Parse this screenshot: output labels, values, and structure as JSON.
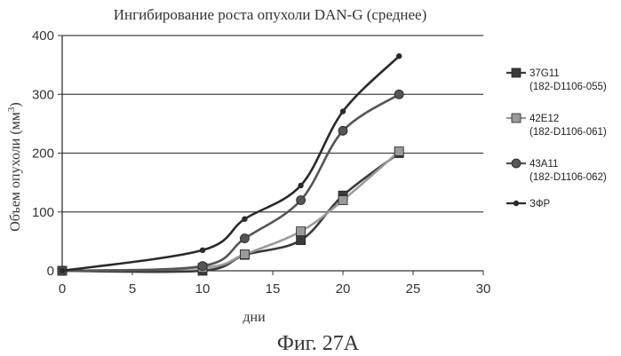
{
  "chart_data": {
    "type": "line",
    "title": "Ингибирование роста опухоли DAN-G (среднее)",
    "xlabel": "дни",
    "ylabel": "Объем опухоли (мм",
    "ylabel_sup": "3",
    "ylabel_close": ")",
    "xlim": [
      0,
      30
    ],
    "ylim": [
      0,
      400
    ],
    "xticks": [
      "0",
      "5",
      "10",
      "15",
      "20",
      "25",
      "30"
    ],
    "yticks": [
      "0",
      "100",
      "200",
      "300",
      "400"
    ],
    "grid": "horizontal",
    "legend_position": "right",
    "series": [
      {
        "name": "37G11",
        "name_line2": "(182-D1106-055)",
        "color": "#3a3a3a",
        "marker": "square",
        "x": [
          0,
          10,
          13,
          17,
          20,
          24
        ],
        "y": [
          0,
          0,
          27,
          52,
          128,
          200
        ]
      },
      {
        "name": "42E12",
        "name_line2": "(182-D1106-061)",
        "color": "#9a9a9a",
        "marker": "square",
        "x": [
          0,
          10,
          13,
          17,
          20,
          24
        ],
        "y": [
          0,
          5,
          28,
          67,
          120,
          203
        ]
      },
      {
        "name": "43A11",
        "name_line2": "(182-D1106-062)",
        "color": "#555555",
        "marker": "circle",
        "x": [
          0,
          10,
          13,
          17,
          20,
          24
        ],
        "y": [
          0,
          8,
          55,
          120,
          238,
          300
        ]
      },
      {
        "name": "ЗФР",
        "name_line2": "",
        "color": "#2a2a2a",
        "marker": "dot",
        "x": [
          0,
          10,
          13,
          17,
          20,
          24
        ],
        "y": [
          0,
          35,
          88,
          145,
          271,
          365
        ]
      }
    ]
  },
  "caption": "Фиг. 27А"
}
